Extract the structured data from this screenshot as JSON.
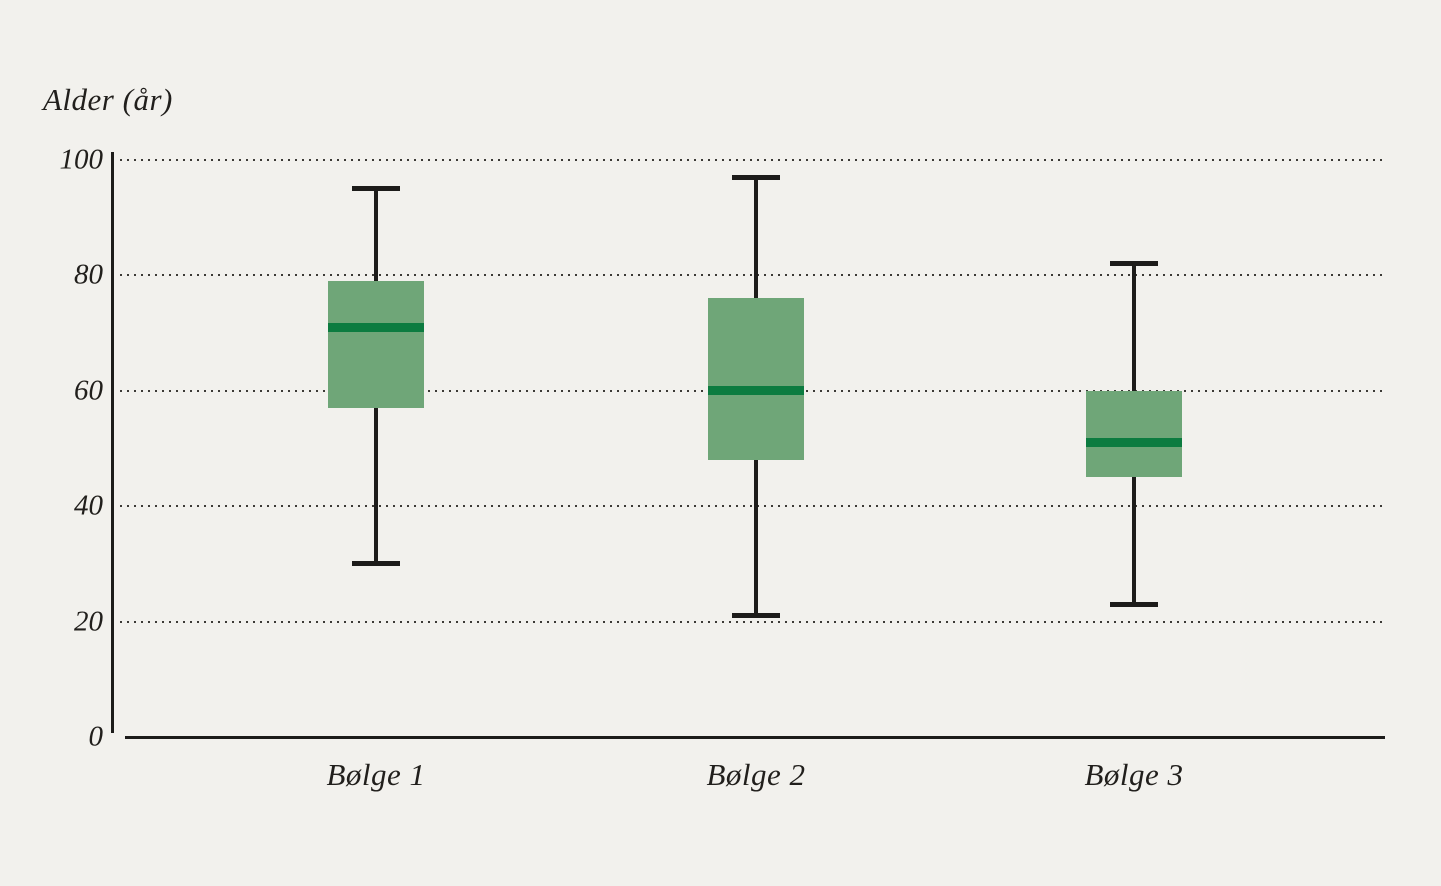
{
  "chart_data": {
    "type": "box",
    "title": "",
    "ylabel": "Alder (år)",
    "xlabel": "",
    "ylim": [
      0,
      100
    ],
    "yticks": [
      0,
      20,
      40,
      60,
      80,
      100
    ],
    "grid": "horizontal dotted lines at y = 20, 40, 60, 80, 100; solid baseline at 0",
    "legend": "none",
    "categories": [
      "Bølge 1",
      "Bølge 2",
      "Bølge 3"
    ],
    "series": [
      {
        "name": "Bølge 1",
        "min": 30,
        "q1": 57,
        "median": 71,
        "q3": 79,
        "max": 95
      },
      {
        "name": "Bølge 2",
        "min": 21,
        "q1": 48,
        "median": 60,
        "q3": 76,
        "max": 97
      },
      {
        "name": "Bølge 3",
        "min": 23,
        "q1": 45,
        "median": 51,
        "q3": 60,
        "max": 82
      }
    ],
    "colors": {
      "background": "#f2f1ed",
      "box_fill": "#6fa678",
      "median_line": "#0c7c40",
      "whisker_line": "#1d1c1a",
      "axis_line": "#1d1c1a",
      "grid_dots": "#3c3a36",
      "text": "#211f1c"
    }
  }
}
